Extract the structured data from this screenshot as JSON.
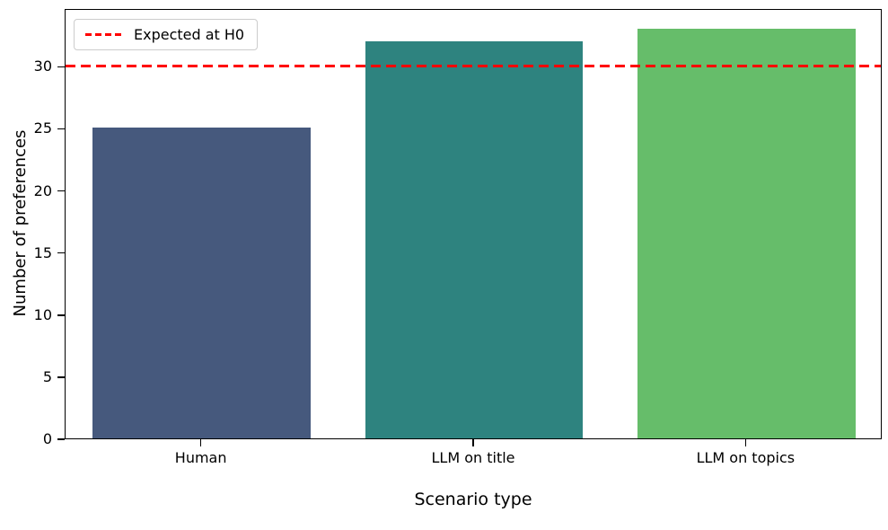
{
  "chart_data": {
    "type": "bar",
    "title": "",
    "xlabel": "Scenario type",
    "ylabel": "Number of preferences",
    "categories": [
      "Human",
      "LLM on title",
      "LLM on topics"
    ],
    "values": [
      25,
      32,
      33
    ],
    "bar_colors": [
      "#46597d",
      "#2e837f",
      "#66bd6a"
    ],
    "ylim": [
      0,
      34.65
    ],
    "yticks": [
      0,
      5,
      10,
      15,
      20,
      25,
      30
    ],
    "grid": "off",
    "reference_line": {
      "value": 30,
      "label": "Expected at H0",
      "color": "#ff0000",
      "style": "dashed"
    },
    "legend": {
      "position": "upper left",
      "entries": [
        {
          "label": "Expected at H0",
          "color": "#ff0000",
          "line_style": "dashed"
        }
      ]
    }
  }
}
